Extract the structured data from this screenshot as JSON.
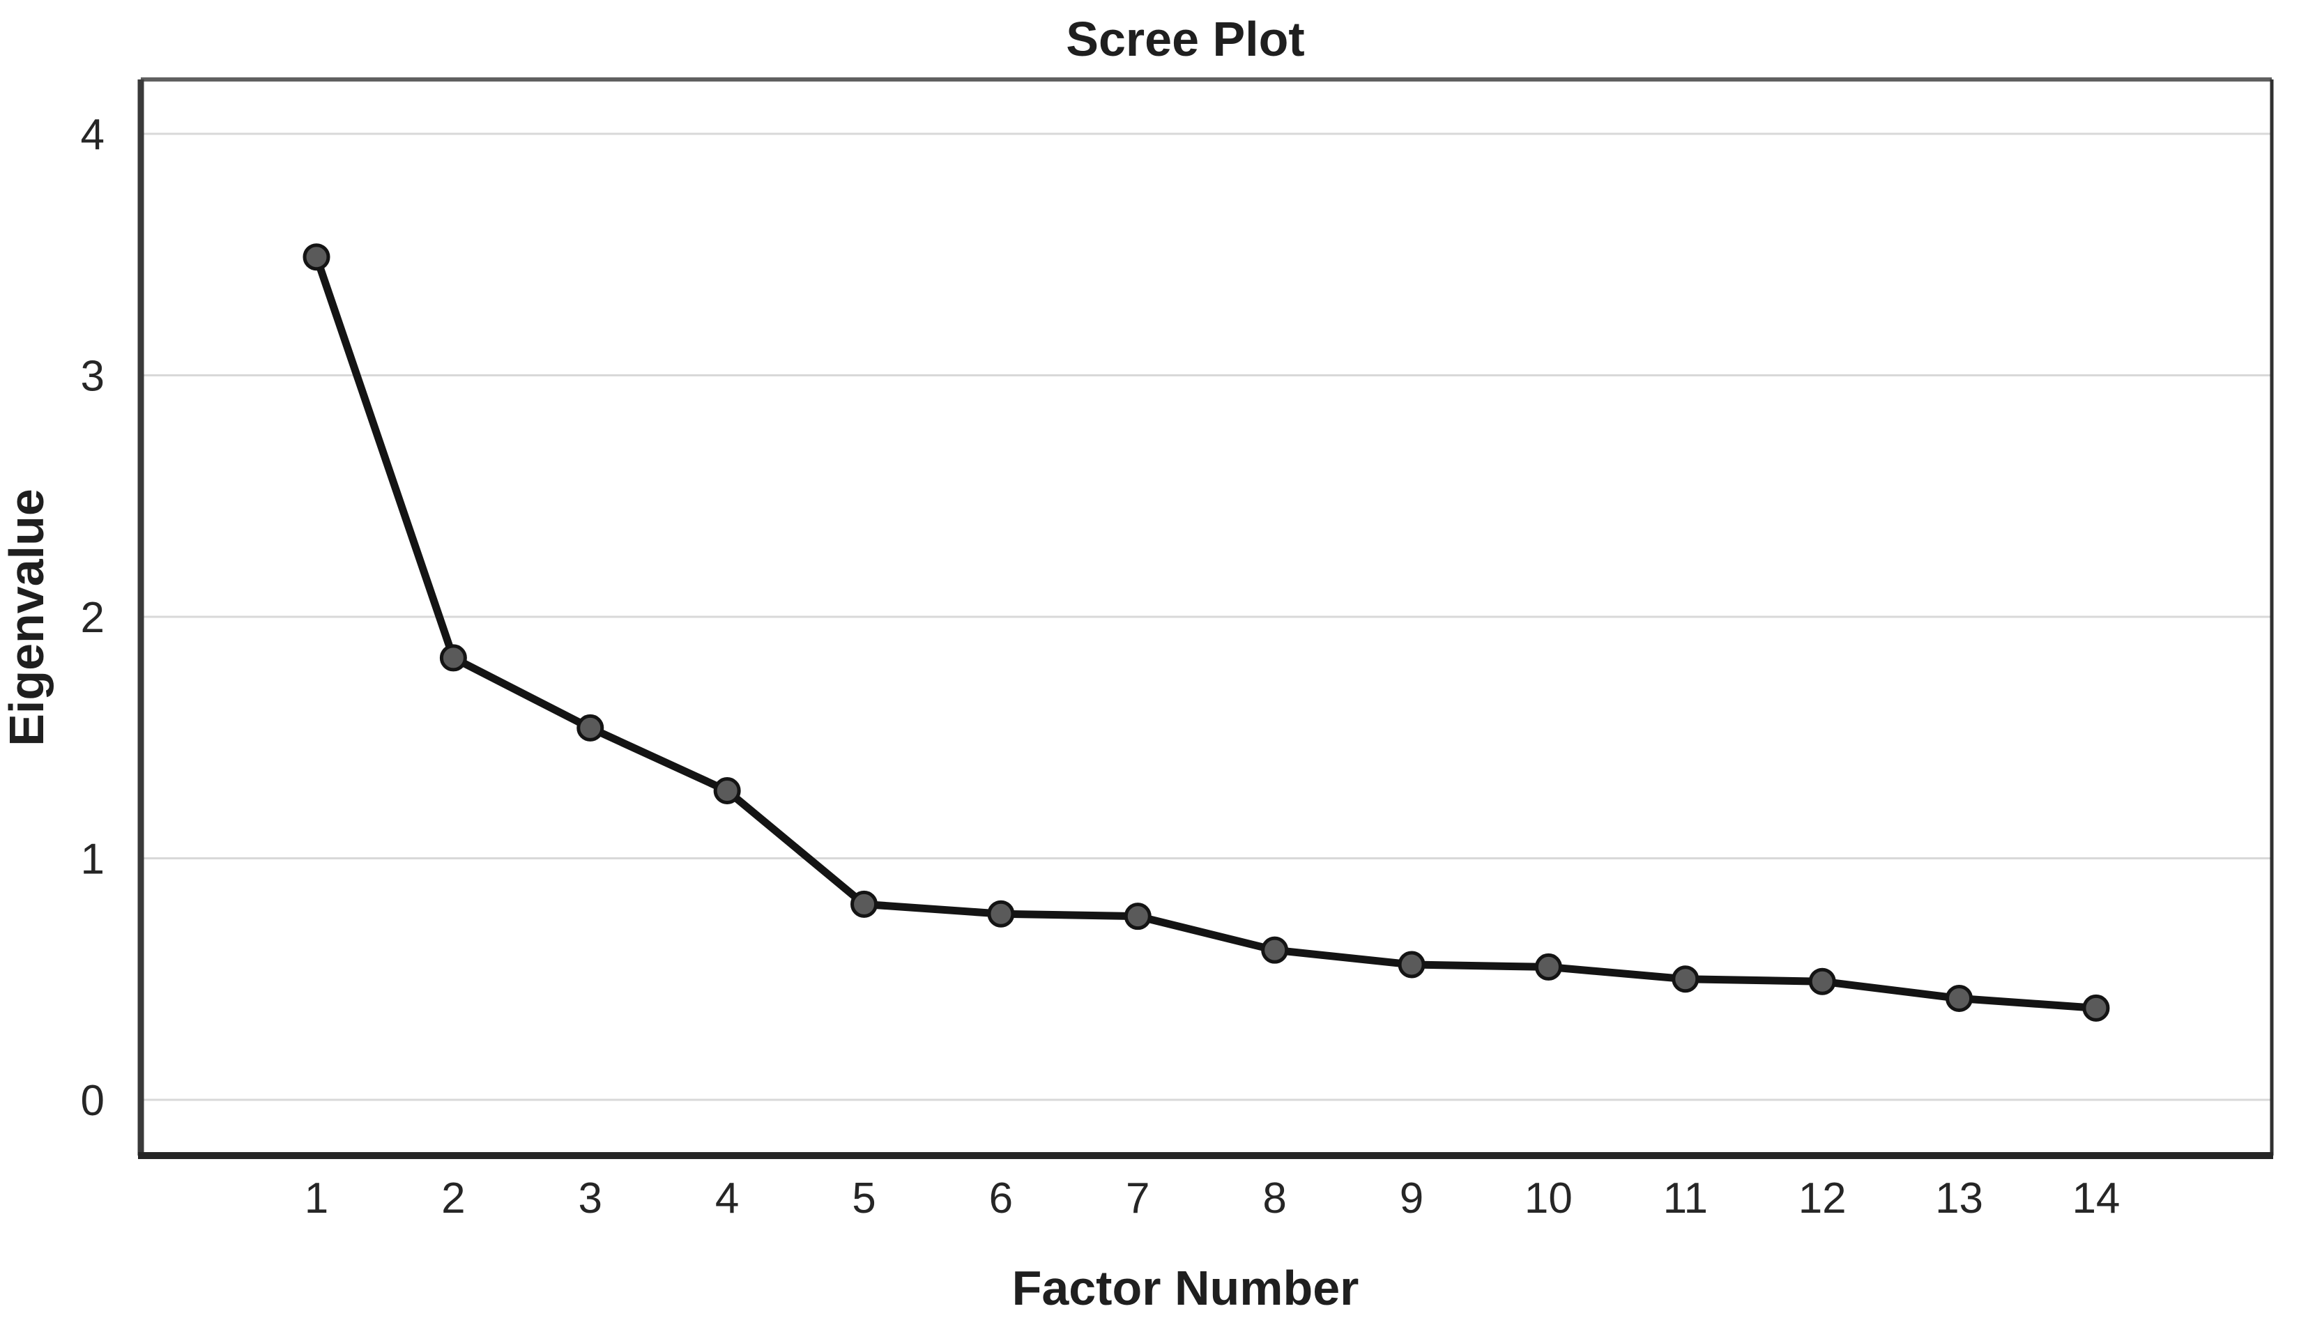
{
  "chart_data": {
    "type": "line",
    "title": "Scree Plot",
    "xlabel": "Factor Number",
    "ylabel": "Eigenvalue",
    "x": [
      1,
      2,
      3,
      4,
      5,
      6,
      7,
      8,
      9,
      10,
      11,
      12,
      13,
      14
    ],
    "x_tick_labels": [
      "1",
      "2",
      "3",
      "4",
      "5",
      "6",
      "7",
      "8",
      "9",
      "10",
      "11",
      "12",
      "13",
      "14"
    ],
    "series": [
      {
        "name": "Eigenvalue",
        "values": [
          3.49,
          1.83,
          1.54,
          1.28,
          0.81,
          0.77,
          0.76,
          0.62,
          0.56,
          0.55,
          0.5,
          0.49,
          0.42,
          0.38
        ]
      }
    ],
    "yticks": [
      0,
      1,
      2,
      3,
      4
    ],
    "ylim": [
      -0.23,
      4.23
    ],
    "xlim": [
      -0.28,
      15.28
    ],
    "grid": "horizontal-only",
    "legend": "none",
    "marker": "circle",
    "colors": {
      "line": "#141414",
      "marker_fill": "#5a5a5a",
      "marker_edge": "#141414",
      "gridline": "#d8d8d8",
      "frame_top": "#606060",
      "frame_right": "#303030",
      "frame_left": "#3a3a3a",
      "frame_bottom": "#262626",
      "text": "#1f1f1f",
      "background": "#ffffff"
    }
  }
}
